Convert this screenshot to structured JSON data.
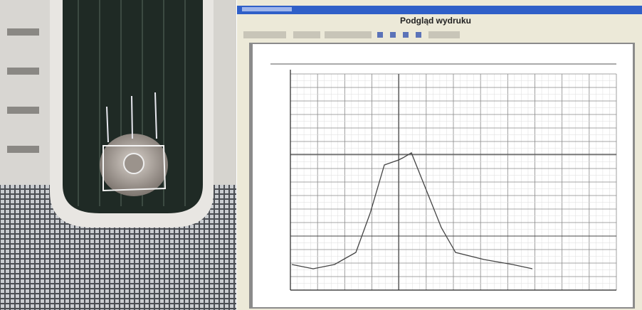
{
  "window": {
    "title": "Podgląd wydruku"
  }
}
